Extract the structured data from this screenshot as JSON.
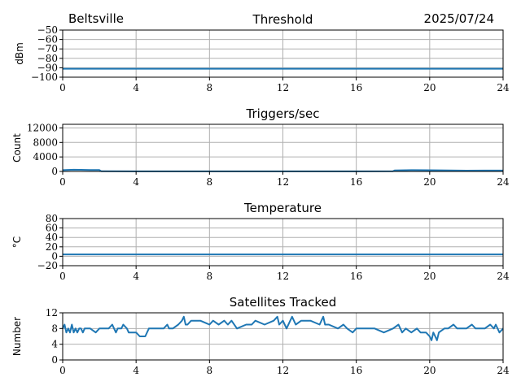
{
  "header": {
    "station": "Beltsville",
    "date": "2025/07/24"
  },
  "chart_data": [
    {
      "type": "line",
      "title": "Threshold",
      "ylabel": "dBm",
      "xlim": [
        0,
        24
      ],
      "ylim": [
        -100,
        -50
      ],
      "xticks": [
        0,
        4,
        8,
        12,
        16,
        20,
        24
      ],
      "yticks": [
        -100,
        -90,
        -80,
        -70,
        -60,
        -50
      ],
      "ytick_labels": [
        "−100",
        "−90",
        "−80",
        "−70",
        "−60",
        "−50"
      ],
      "grid": true,
      "series": [
        {
          "color": "#1f77b4",
          "x": [
            0,
            24
          ],
          "y": [
            -91,
            -91
          ]
        }
      ]
    },
    {
      "type": "line",
      "title": "Triggers/sec",
      "ylabel": "Count",
      "xlim": [
        0,
        24
      ],
      "ylim": [
        0,
        13000
      ],
      "xticks": [
        0,
        4,
        8,
        12,
        16,
        20,
        24
      ],
      "yticks": [
        0,
        4000,
        8000,
        12000
      ],
      "ytick_labels": [
        "0",
        "4000",
        "8000",
        "12000"
      ],
      "grid": true,
      "series": [
        {
          "color": "#1f77b4",
          "x": [
            0,
            0.3,
            0.6,
            1.0,
            1.5,
            2.0,
            2.1,
            4,
            8,
            12,
            16,
            18.0,
            18.1,
            19,
            20,
            21,
            22,
            23,
            24
          ],
          "y": [
            350,
            420,
            480,
            450,
            400,
            380,
            60,
            30,
            25,
            25,
            30,
            60,
            300,
            350,
            330,
            260,
            230,
            240,
            250
          ]
        }
      ]
    },
    {
      "type": "line",
      "title": "Temperature",
      "ylabel": "°C",
      "xlim": [
        0,
        24
      ],
      "ylim": [
        -20,
        80
      ],
      "xticks": [
        0,
        4,
        8,
        12,
        16,
        20,
        24
      ],
      "yticks": [
        -20,
        0,
        20,
        40,
        60,
        80
      ],
      "ytick_labels": [
        "−20",
        "0",
        "20",
        "40",
        "60",
        "80"
      ],
      "grid": true,
      "series": [
        {
          "color": "#1f77b4",
          "x": [
            0,
            24
          ],
          "y": [
            4,
            4
          ]
        }
      ]
    },
    {
      "type": "line",
      "title": "Satellites Tracked",
      "ylabel": "Number",
      "xlim": [
        0,
        24
      ],
      "ylim": [
        0,
        12
      ],
      "xticks": [
        0,
        4,
        8,
        12,
        16,
        20,
        24
      ],
      "yticks": [
        0,
        4,
        8,
        12
      ],
      "ytick_labels": [
        "0",
        "4",
        "8",
        "12"
      ],
      "grid": true,
      "series": [
        {
          "color": "#1f77b4",
          "x": [
            0,
            0.1,
            0.2,
            0.3,
            0.4,
            0.5,
            0.6,
            0.7,
            0.8,
            0.9,
            1.0,
            1.1,
            1.2,
            1.5,
            1.8,
            2.0,
            2.1,
            2.5,
            2.7,
            2.8,
            2.9,
            3.0,
            3.2,
            3.3,
            3.5,
            3.6,
            4.0,
            4.2,
            4.5,
            4.7,
            4.8,
            5.0,
            5.5,
            5.7,
            5.8,
            6.0,
            6.3,
            6.5,
            6.6,
            6.7,
            6.8,
            7.0,
            7.5,
            8.0,
            8.2,
            8.5,
            8.8,
            9.0,
            9.2,
            9.5,
            10.0,
            10.3,
            10.5,
            11.0,
            11.5,
            11.7,
            11.8,
            12.0,
            12.2,
            12.5,
            12.7,
            13.0,
            13.5,
            14.0,
            14.2,
            14.3,
            14.5,
            15.0,
            15.3,
            15.5,
            15.8,
            16.0,
            16.5,
            17.0,
            17.5,
            18.0,
            18.3,
            18.5,
            18.7,
            19.0,
            19.3,
            19.5,
            19.8,
            20.0,
            20.1,
            20.2,
            20.3,
            20.4,
            20.5,
            20.8,
            21.0,
            21.3,
            21.5,
            22.0,
            22.3,
            22.5,
            23.0,
            23.3,
            23.5,
            23.6,
            23.8,
            24.0
          ],
          "y": [
            8,
            9,
            7,
            8,
            7,
            9,
            7,
            8,
            7,
            8,
            8,
            7,
            8,
            8,
            7,
            8,
            8,
            8,
            9,
            8,
            7,
            8,
            8,
            9,
            8,
            7,
            7,
            6,
            6,
            8,
            8,
            8,
            8,
            9,
            8,
            8,
            9,
            10,
            11,
            9,
            9,
            10,
            10,
            9,
            10,
            9,
            10,
            9,
            10,
            8,
            9,
            9,
            10,
            9,
            10,
            11,
            9,
            10,
            8,
            11,
            9,
            10,
            10,
            9,
            11,
            9,
            9,
            8,
            9,
            8,
            7,
            8,
            8,
            8,
            7,
            8,
            9,
            7,
            8,
            7,
            8,
            7,
            7,
            6,
            5,
            7,
            6,
            5,
            7,
            8,
            8,
            9,
            8,
            8,
            9,
            8,
            8,
            9,
            8,
            9,
            7,
            8
          ]
        }
      ]
    }
  ]
}
